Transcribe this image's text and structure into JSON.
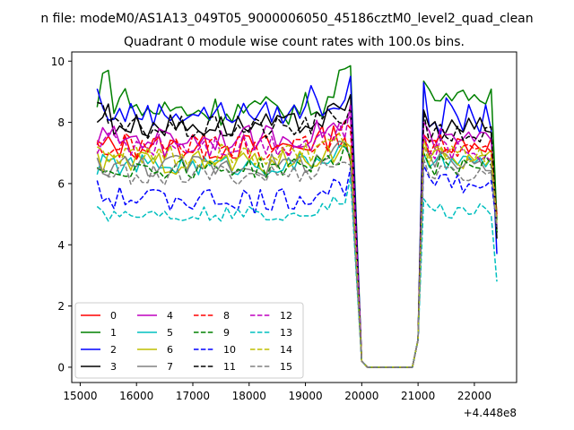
{
  "chart_data": {
    "type": "line",
    "suptitle": "n file: modeM0/AS1A13_049T05_9000006050_45186cztM0_level2_quad_clean",
    "title": "Quadrant 0 module wise count rates with 100.0s bins.",
    "xlabel": "",
    "ylabel": "",
    "offset_label": "+4.448e8",
    "xlim": [
      14850,
      22750
    ],
    "ylim": [
      -0.5,
      10.3
    ],
    "xticks": [
      15000,
      16000,
      17000,
      18000,
      19000,
      20000,
      21000,
      22000
    ],
    "xtick_labels": [
      "15000",
      "16000",
      "17000",
      "18000",
      "19000",
      "20000",
      "21000",
      "22000"
    ],
    "yticks": [
      0,
      2,
      4,
      6,
      8,
      10
    ],
    "ytick_labels": [
      "0",
      "2",
      "4",
      "6",
      "8",
      "10"
    ],
    "grid": false,
    "legend_position": "lower-left",
    "segment1": {
      "x_start": 15300,
      "x_end": 19800,
      "step": 100
    },
    "gap": {
      "x": [
        19900,
        20000,
        20100,
        20200,
        20900,
        21000
      ],
      "values": [
        4.0,
        0.2,
        0.0,
        0.0,
        0.0,
        0.9
      ]
    },
    "segment2": {
      "x_start": 21100,
      "x_end": 22300,
      "step": 100
    },
    "tail": {
      "x": 22400
    },
    "series": [
      {
        "name": "0",
        "color": "#ff0000",
        "dash": "solid",
        "level1": 7.2,
        "amp1": 0.45,
        "level2": 7.3,
        "amp2": 0.35,
        "end1": 6.7,
        "start2": 7.6,
        "tail": 5.0
      },
      {
        "name": "1",
        "color": "#008000",
        "dash": "solid",
        "level1": 8.4,
        "amp1": 0.5,
        "level2": 8.9,
        "amp2": 0.2,
        "end1": 9.85,
        "start2": 9.35,
        "tail": 4.8,
        "extra": {
          "15400": 9.6,
          "15500": 9.7,
          "15800": 9.1,
          "19600": 9.7,
          "19700": 9.75,
          "22100": 8.7,
          "22200": 8.6
        }
      },
      {
        "name": "2",
        "color": "#0000ff",
        "dash": "solid",
        "level1": 8.3,
        "amp1": 0.4,
        "level2": 8.1,
        "amp2": 0.5,
        "end1": 9.5,
        "start2": 9.3,
        "tail": 3.7,
        "extra": {
          "15300": 9.1,
          "19100": 9.2,
          "21500": 8.8
        }
      },
      {
        "name": "3",
        "color": "#000000",
        "dash": "solid",
        "level1": 7.9,
        "amp1": 0.4,
        "level2": 7.8,
        "amp2": 0.4,
        "end1": 8.9,
        "start2": 8.4,
        "tail": 4.2,
        "extra": {
          "15300": 8.0,
          "15500": 8.6
        }
      },
      {
        "name": "4",
        "color": "#bf00bf",
        "dash": "solid",
        "level1": 7.5,
        "amp1": 0.4,
        "level2": 7.4,
        "amp2": 0.4,
        "end1": 8.2,
        "start2": 8.0,
        "tail": 4.5
      },
      {
        "name": "5",
        "color": "#00bfbf",
        "dash": "solid",
        "level1": 6.6,
        "amp1": 0.35,
        "level2": 6.7,
        "amp2": 0.3,
        "end1": 6.9,
        "start2": 7.0,
        "tail": 4.4
      },
      {
        "name": "6",
        "color": "#bfbf00",
        "dash": "solid",
        "level1": 6.7,
        "amp1": 0.4,
        "level2": 6.8,
        "amp2": 0.35,
        "end1": 7.2,
        "start2": 7.5,
        "tail": 4.6
      },
      {
        "name": "7",
        "color": "#808080",
        "dash": "solid",
        "level1": 6.6,
        "amp1": 0.4,
        "level2": 6.7,
        "amp2": 0.35,
        "end1": 6.8,
        "start2": 7.2,
        "tail": 4.5
      },
      {
        "name": "8",
        "color": "#ff0000",
        "dash": "dashed",
        "level1": 7.2,
        "amp1": 0.45,
        "level2": 7.2,
        "amp2": 0.4,
        "end1": 7.8,
        "start2": 7.6,
        "tail": 4.9
      },
      {
        "name": "9",
        "color": "#008000",
        "dash": "dashed",
        "level1": 6.5,
        "amp1": 0.35,
        "level2": 6.6,
        "amp2": 0.35,
        "end1": 6.8,
        "start2": 7.0,
        "tail": 4.4
      },
      {
        "name": "10",
        "color": "#0000ff",
        "dash": "dashed",
        "level1": 5.5,
        "amp1": 0.4,
        "level2": 6.0,
        "amp2": 0.3,
        "end1": 6.5,
        "start2": 6.6,
        "tail": 4.6,
        "extra": {
          "15300": 6.1,
          "18100": 5.0
        }
      },
      {
        "name": "11",
        "color": "#000000",
        "dash": "dashed",
        "level1": 7.8,
        "amp1": 0.4,
        "level2": 7.6,
        "amp2": 0.35,
        "end1": 8.5,
        "start2": 8.3,
        "tail": 4.4,
        "extra": {
          "15300": 8.65,
          "15400": 8.6
        }
      },
      {
        "name": "12",
        "color": "#bf00bf",
        "dash": "dashed",
        "level1": 7.3,
        "amp1": 0.45,
        "level2": 7.1,
        "amp2": 0.4,
        "end1": 8.6,
        "start2": 7.6,
        "tail": 4.6
      },
      {
        "name": "13",
        "color": "#00bfbf",
        "dash": "dashed",
        "level1": 5.0,
        "amp1": 0.25,
        "level2": 5.1,
        "amp2": 0.25,
        "end1": 6.2,
        "start2": 5.5,
        "tail": 2.8,
        "extra": {
          "15300": 5.25,
          "15400": 5.1,
          "16000": 4.9
        }
      },
      {
        "name": "14",
        "color": "#bfbf00",
        "dash": "dashed",
        "level1": 6.9,
        "amp1": 0.4,
        "level2": 6.9,
        "amp2": 0.35,
        "end1": 7.2,
        "start2": 7.3,
        "tail": 4.7
      },
      {
        "name": "15",
        "color": "#808080",
        "dash": "dashed",
        "level1": 6.3,
        "amp1": 0.35,
        "level2": 6.3,
        "amp2": 0.3,
        "end1": 6.6,
        "start2": 6.8,
        "tail": 4.6
      }
    ]
  }
}
